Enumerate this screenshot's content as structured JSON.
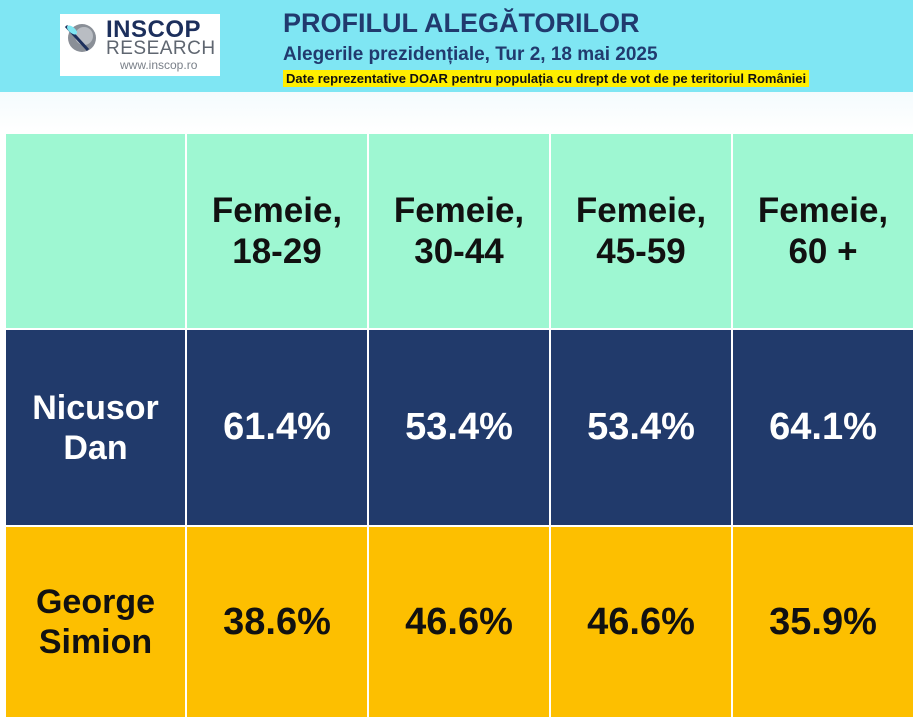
{
  "header": {
    "logo": {
      "name": "INSCOP",
      "sub": "RESEARCH",
      "url": "www.inscop.ro"
    },
    "title": "PROFILUL ALEGĂTORILOR",
    "subtitle": "Alegerile prezidențiale, Tur 2, 18 mai 2025",
    "note": "Date reprezentative DOAR pentru populația cu drept de vot de pe teritoriul României"
  },
  "colors": {
    "header_bg": "#7fe6f3",
    "head_row": "#9ef7d2",
    "dan_row": "#213a6b",
    "simion_row": "#fdbf00"
  },
  "chart_data": {
    "type": "table",
    "columns": [
      {
        "line1": "Femeie,",
        "line2": "18-29"
      },
      {
        "line1": "Femeie,",
        "line2": "30-44"
      },
      {
        "line1": "Femeie,",
        "line2": "45-59"
      },
      {
        "line1": "Femeie,",
        "line2": "60 +"
      }
    ],
    "rows": [
      {
        "line1": "Nicusor",
        "line2": "Dan",
        "values": [
          "61.4%",
          "53.4%",
          "53.4%",
          "64.1%"
        ]
      },
      {
        "line1": "George",
        "line2": "Simion",
        "values": [
          "38.6%",
          "46.6%",
          "46.6%",
          "35.9%"
        ]
      }
    ]
  }
}
